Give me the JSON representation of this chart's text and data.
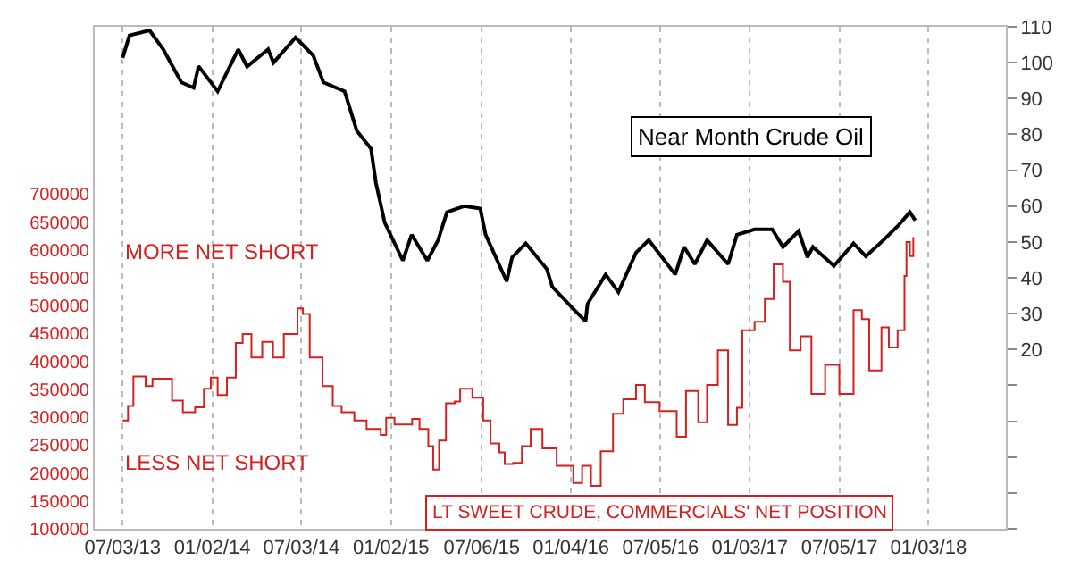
{
  "chart_data": {
    "type": "line",
    "annotations": [
      "MORE NET SHORT",
      "LESS NET SHORT"
    ],
    "xlim": [
      "2013-05-07",
      "2018-06-10"
    ],
    "xticks": [
      {
        "value": "2013-07-03",
        "label": "07/03/13"
      },
      {
        "value": "2014-01-02",
        "label": "01/02/14"
      },
      {
        "value": "2014-07-03",
        "label": "07/03/14"
      },
      {
        "value": "2015-01-02",
        "label": "01/02/15"
      },
      {
        "value": "2015-07-06",
        "label": "07/06/15"
      },
      {
        "value": "2016-01-04",
        "label": "01/04/16"
      },
      {
        "value": "2016-07-05",
        "label": "07/05/16"
      },
      {
        "value": "2017-01-03",
        "label": "01/03/17"
      },
      {
        "value": "2017-07-05",
        "label": "07/05/17"
      },
      {
        "value": "2018-01-03",
        "label": "01/03/18"
      }
    ],
    "ylim": [
      100000,
      1000000
    ],
    "yticks": [
      100000,
      150000,
      200000,
      250000,
      300000,
      350000,
      400000,
      450000,
      500000,
      550000,
      600000,
      650000,
      700000
    ],
    "y2lim": [
      -30,
      110
    ],
    "y2ticks": [
      {
        "value": -30,
        "label": null
      },
      {
        "value": -20,
        "label": null
      },
      {
        "value": -10,
        "label": null
      },
      {
        "value": 0,
        "label": null
      },
      {
        "value": 10,
        "label": null
      },
      20,
      30,
      40,
      50,
      60,
      70,
      80,
      90,
      100,
      110
    ],
    "grid": "x",
    "legend": false,
    "series": [
      {
        "name": "Near Month Crude Oil",
        "color": "#000000",
        "axis": "y2",
        "x": [
          "2013-07-03",
          "2013-07-17",
          "2013-08-27",
          "2013-09-24",
          "2013-10-31",
          "2013-11-25",
          "2013-12-05",
          "2014-01-13",
          "2014-02-24",
          "2014-03-14",
          "2014-04-26",
          "2014-05-07",
          "2014-06-21",
          "2014-07-27",
          "2014-08-17",
          "2014-09-29",
          "2014-10-24",
          "2014-11-22",
          "2014-12-02",
          "2014-12-20",
          "2015-01-26",
          "2015-02-13",
          "2015-03-17",
          "2015-04-08",
          "2015-04-26",
          "2015-06-01",
          "2015-07-03",
          "2015-07-14",
          "2015-08-26",
          "2015-09-06",
          "2015-10-04",
          "2015-11-16",
          "2015-11-27",
          "2016-01-09",
          "2016-02-03",
          "2016-02-07",
          "2016-03-15",
          "2016-04-10",
          "2016-05-16",
          "2016-06-11",
          "2016-08-04",
          "2016-08-22",
          "2016-09-13",
          "2016-10-08",
          "2016-11-20",
          "2016-12-08",
          "2017-01-13",
          "2017-02-18",
          "2017-03-12",
          "2017-04-13",
          "2017-05-01",
          "2017-05-12",
          "2017-06-24",
          "2017-08-03",
          "2017-08-28",
          "2017-10-03",
          "2017-11-01",
          "2017-11-26",
          "2017-12-07"
        ],
        "values": [
          101.3,
          107.6,
          109,
          103.7,
          94.5,
          93,
          99,
          92,
          103.7,
          98.9,
          103.7,
          100,
          107,
          102,
          94.5,
          92,
          81,
          76,
          66.5,
          55.4,
          44.8,
          52,
          44.8,
          50.5,
          58.3,
          60,
          59.3,
          52,
          39,
          45.7,
          49.6,
          42.4,
          37.5,
          31.3,
          27.9,
          32.7,
          40.9,
          36,
          47,
          50.5,
          40.9,
          48.6,
          43.8,
          50.5,
          43.8,
          52,
          53.5,
          53.5,
          48.6,
          53,
          45.7,
          48.6,
          43.3,
          49.6,
          46,
          50.5,
          54.4,
          58.3,
          56
        ]
      },
      {
        "name": "LT SWEET CRUDE, COMMERCIALS' NET POSITION",
        "color": "#d62020",
        "type": "step",
        "x": [
          "2013-07-03",
          "2013-07-14",
          "2013-07-25",
          "2013-08-05",
          "2013-08-19",
          "2013-09-02",
          "2013-10-12",
          "2013-11-03",
          "2013-11-28",
          "2013-12-16",
          "2013-12-30",
          "2014-01-13",
          "2014-02-01",
          "2014-02-19",
          "2014-03-05",
          "2014-03-23",
          "2014-04-14",
          "2014-05-06",
          "2014-05-28",
          "2014-06-14",
          "2014-06-25",
          "2014-07-06",
          "2014-07-20",
          "2014-08-15",
          "2014-09-05",
          "2014-09-23",
          "2014-10-19",
          "2014-11-13",
          "2014-12-12",
          "2014-12-23",
          "2015-01-09",
          "2015-02-14",
          "2015-03-01",
          "2015-03-19",
          "2015-03-29",
          "2015-04-10",
          "2015-04-24",
          "2015-05-12",
          "2015-05-23",
          "2015-06-17",
          "2015-06-28",
          "2015-07-09",
          "2015-07-24",
          "2015-08-11",
          "2015-08-22",
          "2015-09-08",
          "2015-09-26",
          "2015-10-14",
          "2015-11-07",
          "2015-12-06",
          "2016-01-09",
          "2016-01-27",
          "2016-02-14",
          "2016-03-05",
          "2016-03-30",
          "2016-04-20",
          "2016-05-16",
          "2016-06-03",
          "2016-07-03",
          "2016-08-07",
          "2016-08-26",
          "2016-09-20",
          "2016-10-08",
          "2016-10-30",
          "2016-11-20",
          "2016-12-08",
          "2016-12-19",
          "2017-01-13",
          "2017-02-03",
          "2017-02-21",
          "2017-03-12",
          "2017-03-26",
          "2017-04-17",
          "2017-05-09",
          "2017-06-06",
          "2017-07-05",
          "2017-08-03",
          "2017-08-20",
          "2017-09-04",
          "2017-09-15",
          "2017-09-29",
          "2017-10-14",
          "2017-11-01",
          "2017-11-15",
          "2017-11-19",
          "2017-11-26",
          "2017-12-03"
        ],
        "values": [
          294000,
          320000,
          373000,
          373000,
          356000,
          369000,
          330000,
          309000,
          318000,
          351000,
          371000,
          340000,
          371000,
          433000,
          449000,
          407000,
          435000,
          407000,
          449000,
          449000,
          495000,
          485000,
          407000,
          356000,
          320000,
          309000,
          294000,
          279000,
          268000,
          299000,
          287000,
          297000,
          279000,
          248000,
          206000,
          258000,
          325000,
          328000,
          351000,
          335000,
          335000,
          294000,
          253000,
          237000,
          216000,
          218000,
          248000,
          279000,
          244000,
          213000,
          182000,
          213000,
          177000,
          239000,
          306000,
          332000,
          358000,
          327000,
          311000,
          265000,
          347000,
          291000,
          358000,
          420000,
          286000,
          317000,
          456000,
          471000,
          512000,
          574000,
          543000,
          420000,
          445000,
          342000,
          394000,
          342000,
          492000,
          476000,
          384000,
          384000,
          461000,
          425000,
          456000,
          553000,
          614000,
          589000,
          623000
        ]
      }
    ]
  }
}
